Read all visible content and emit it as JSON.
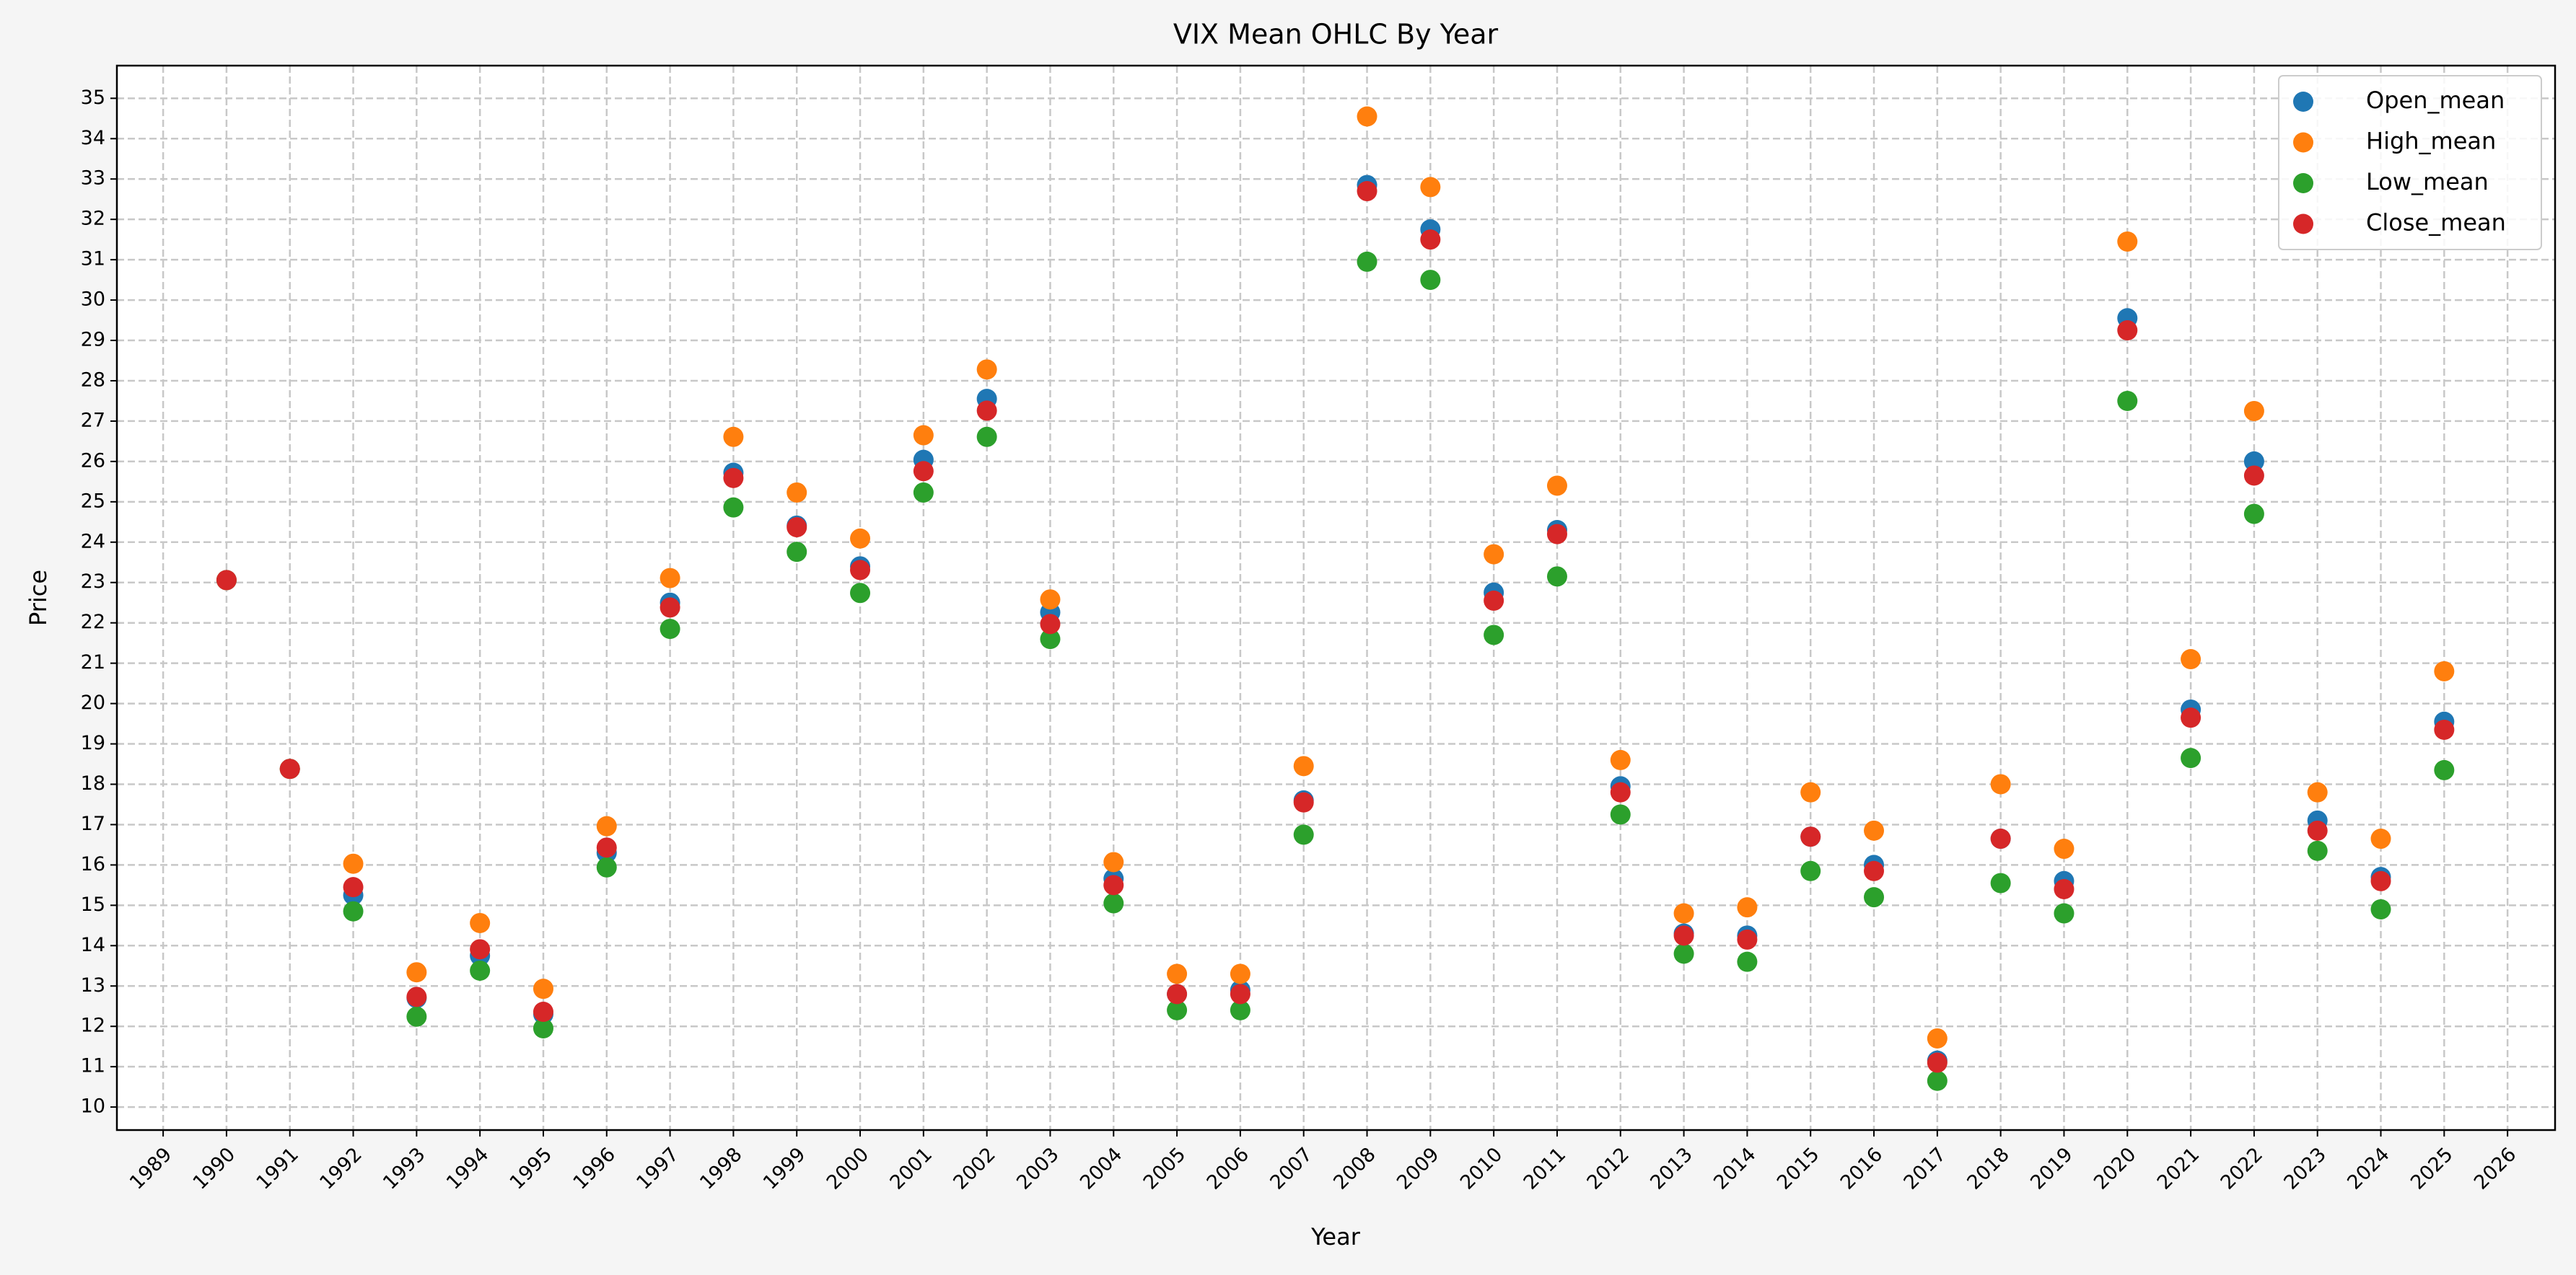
{
  "chart_data": {
    "type": "scatter",
    "title": "VIX Mean OHLC By Year",
    "xlabel": "Year",
    "ylabel": "Price",
    "x": [
      1990,
      1991,
      1992,
      1993,
      1994,
      1995,
      1996,
      1997,
      1998,
      1999,
      2000,
      2001,
      2002,
      2003,
      2004,
      2005,
      2006,
      2007,
      2008,
      2009,
      2010,
      2011,
      2012,
      2013,
      2014,
      2015,
      2016,
      2017,
      2018,
      2019,
      2020,
      2021,
      2022,
      2023,
      2024,
      2025
    ],
    "series": [
      {
        "name": "Open_mean",
        "color": "#1f77b4",
        "values": [
          23.06,
          18.38,
          15.25,
          12.7,
          13.75,
          12.3,
          16.3,
          22.5,
          25.72,
          24.41,
          23.4,
          26.04,
          27.55,
          22.26,
          15.66,
          12.8,
          12.9,
          17.6,
          32.85,
          31.75,
          22.75,
          24.3,
          17.95,
          14.3,
          14.25,
          16.7,
          16.0,
          11.15,
          16.65,
          15.6,
          29.55,
          19.85,
          26.0,
          17.1,
          15.7,
          19.55
        ]
      },
      {
        "name": "High_mean",
        "color": "#ff7f0e",
        "values": [
          23.06,
          18.38,
          16.03,
          13.34,
          14.56,
          12.93,
          16.96,
          23.11,
          26.61,
          25.23,
          24.09,
          26.65,
          28.28,
          22.58,
          16.07,
          13.3,
          13.3,
          18.45,
          34.55,
          32.8,
          23.7,
          25.4,
          18.6,
          14.8,
          14.95,
          17.8,
          16.85,
          11.7,
          18.0,
          16.4,
          31.45,
          21.1,
          27.25,
          17.8,
          16.65,
          20.8
        ]
      },
      {
        "name": "Low_mean",
        "color": "#2ca02c",
        "values": [
          23.06,
          18.38,
          14.85,
          12.24,
          13.38,
          11.95,
          15.94,
          21.85,
          24.86,
          23.76,
          22.74,
          25.23,
          26.61,
          21.6,
          15.05,
          12.4,
          12.4,
          16.75,
          30.95,
          30.5,
          21.7,
          23.15,
          17.25,
          13.8,
          13.6,
          15.85,
          15.2,
          10.65,
          15.55,
          14.8,
          27.5,
          18.65,
          24.7,
          16.35,
          14.9,
          18.35
        ]
      },
      {
        "name": "Close_mean",
        "color": "#d62728",
        "values": [
          23.06,
          18.38,
          15.45,
          12.73,
          13.91,
          12.36,
          16.43,
          22.38,
          25.59,
          24.37,
          23.31,
          25.76,
          27.26,
          21.97,
          15.5,
          12.8,
          12.8,
          17.55,
          32.7,
          31.5,
          22.55,
          24.2,
          17.8,
          14.25,
          14.15,
          16.7,
          15.85,
          11.1,
          16.65,
          15.4,
          29.25,
          19.65,
          25.65,
          16.85,
          15.6,
          19.35
        ]
      }
    ],
    "xlim": [
      1988.27,
      2026.75
    ],
    "ylim": [
      9.43,
      35.81
    ],
    "xticks": [
      1989,
      1990,
      1991,
      1992,
      1993,
      1994,
      1995,
      1996,
      1997,
      1998,
      1999,
      2000,
      2001,
      2002,
      2003,
      2004,
      2005,
      2006,
      2007,
      2008,
      2009,
      2010,
      2011,
      2012,
      2013,
      2014,
      2015,
      2016,
      2017,
      2018,
      2019,
      2020,
      2021,
      2022,
      2023,
      2024,
      2025,
      2026
    ],
    "yticks": [
      10,
      11,
      12,
      13,
      14,
      15,
      16,
      17,
      18,
      19,
      20,
      21,
      22,
      23,
      24,
      25,
      26,
      27,
      28,
      29,
      30,
      31,
      32,
      33,
      34,
      35
    ],
    "grid": true,
    "legend": "upper right"
  }
}
